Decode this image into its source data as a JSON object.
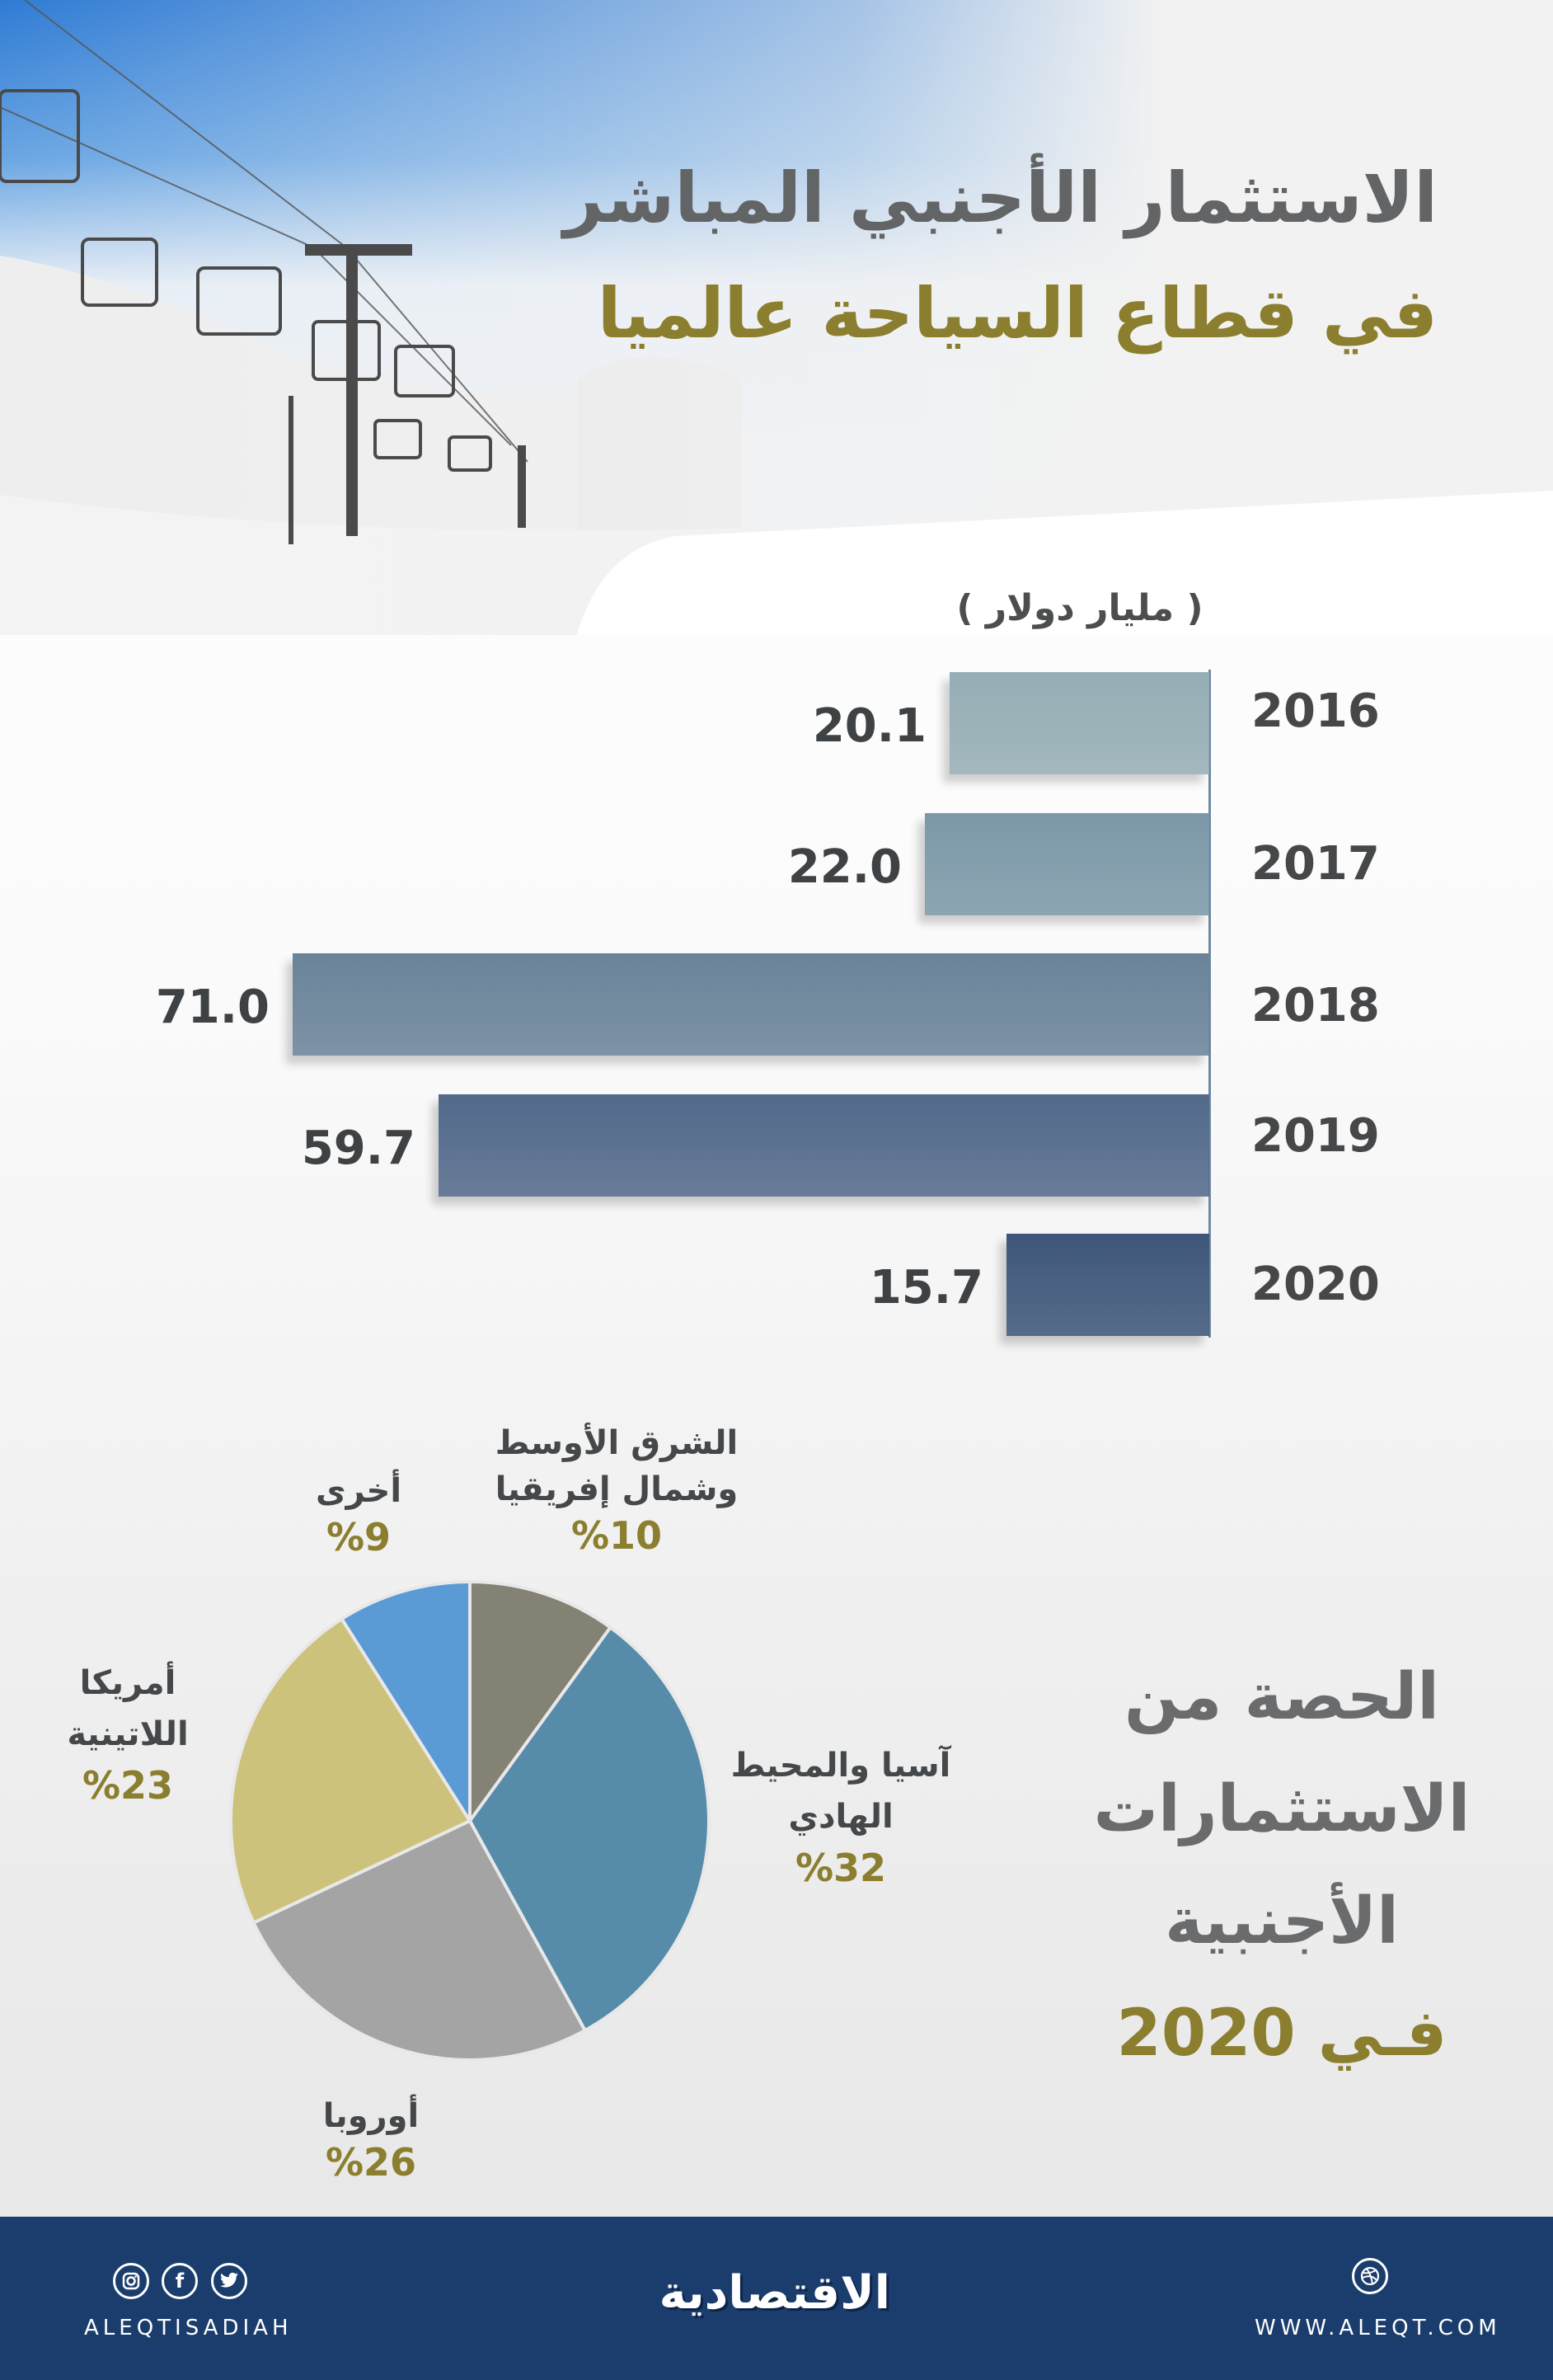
{
  "header": {
    "title_line1": "الاستثمار الأجنبي المباشر",
    "title_line2": "في قطاع السياحة عالميا",
    "title_color": "#636466",
    "accent_color": "#8b7e2e"
  },
  "bar_section": {
    "unit": "( مليار دولار )"
  },
  "pie_section": {
    "title_lines": [
      "الحصة من",
      "الاستثمارات",
      "الأجنبية"
    ],
    "title_year": "فـي 2020",
    "labels": {
      "mena": {
        "name_1": "الشرق الأوسط",
        "name_2": "وشمال إفريقيا",
        "pct": "%10"
      },
      "asia": {
        "name_1": "آسيا والمحيط",
        "name_2": "الهادي",
        "pct": "%32"
      },
      "europe": {
        "name_1": "أوروبا",
        "pct": "%26"
      },
      "latam": {
        "name_1": "أمريكا",
        "name_2": "اللاتينية",
        "pct": "%23"
      },
      "other": {
        "name_1": "أخرى",
        "pct": "%9"
      }
    }
  },
  "footer": {
    "handle": "ALEQTISADIAH",
    "brand": "الاقتصادية",
    "website": "WWW.ALEQT.COM",
    "social_icons": [
      "instagram-icon",
      "facebook-icon",
      "twitter-icon"
    ],
    "web_icon": "dribbble-icon",
    "background_color": "#1b3d6d"
  },
  "chart_data": [
    {
      "type": "bar",
      "orientation": "horizontal",
      "title": "الاستثمار الأجنبي المباشر في قطاع السياحة عالميا",
      "ylabel": "( مليار دولار )",
      "categories": [
        "2016",
        "2017",
        "2018",
        "2019",
        "2020"
      ],
      "values": [
        20.1,
        22.0,
        71.0,
        59.7,
        15.7
      ],
      "value_labels": [
        "20.1",
        "22.0",
        "71.0",
        "59.7",
        "15.7"
      ],
      "colors": [
        "#95adb5",
        "#7c98a8",
        "#6a8399",
        "#52698a",
        "#3e5679"
      ],
      "grid": false,
      "legend": "none"
    },
    {
      "type": "pie",
      "title": "الحصة من الاستثمارات الأجنبية في 2020",
      "categories": [
        "الشرق الأوسط وشمال إفريقيا",
        "آسيا والمحيط الهادي",
        "أوروبا",
        "أمريكا اللاتينية",
        "أخرى"
      ],
      "values": [
        10,
        32,
        26,
        23,
        9
      ],
      "unit": "%",
      "colors": [
        "#838274",
        "#568ca9",
        "#a4a4a4",
        "#cdc27b",
        "#5b9bd5"
      ],
      "start_angle": "12 o'clock, clockwise"
    }
  ]
}
